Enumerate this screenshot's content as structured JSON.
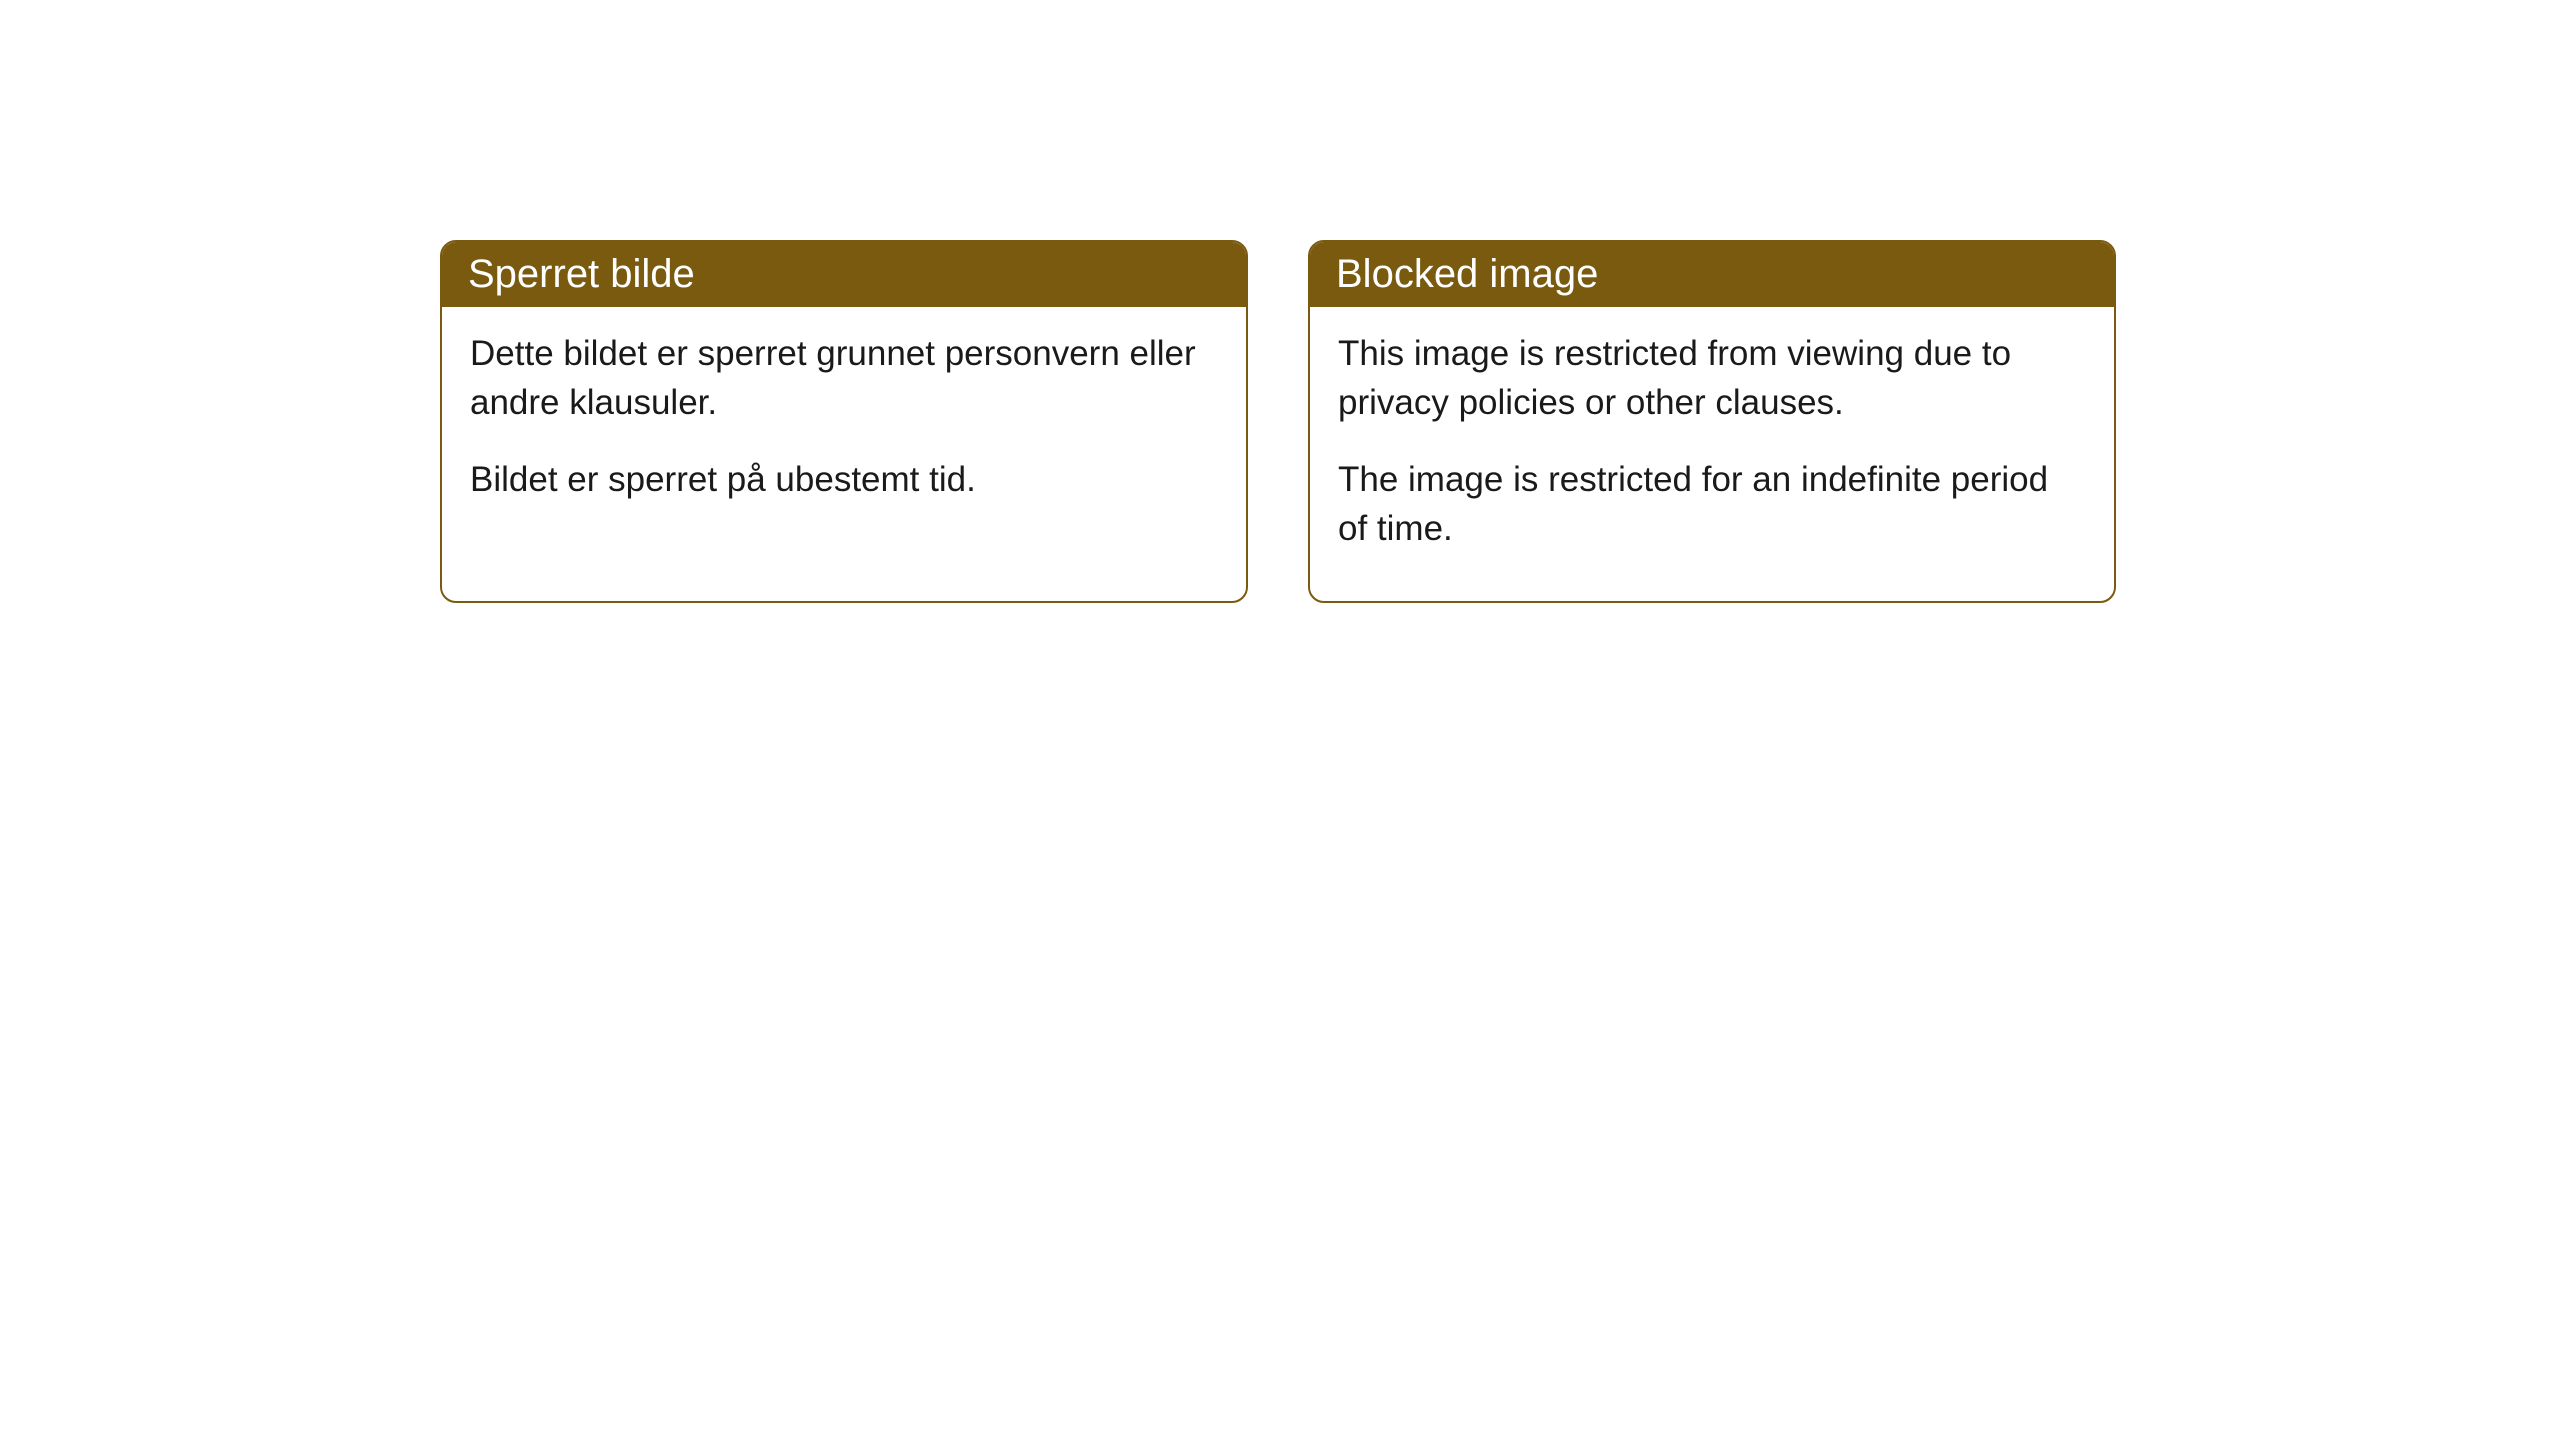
{
  "cards": [
    {
      "title": "Sperret bilde",
      "paragraph1": "Dette bildet er sperret grunnet personvern eller andre klausuler.",
      "paragraph2": "Bildet er sperret på ubestemt tid."
    },
    {
      "title": "Blocked image",
      "paragraph1": "This image is restricted from viewing due to privacy policies or other clauses.",
      "paragraph2": "The image is restricted for an indefinite period of time."
    }
  ],
  "styling": {
    "header_background": "#7a5a0f",
    "header_text_color": "#ffffff",
    "border_color": "#7a5a0f",
    "body_background": "#ffffff",
    "body_text_color": "#1a1a1a",
    "border_radius": 16,
    "title_fontsize": 40,
    "body_fontsize": 35
  }
}
